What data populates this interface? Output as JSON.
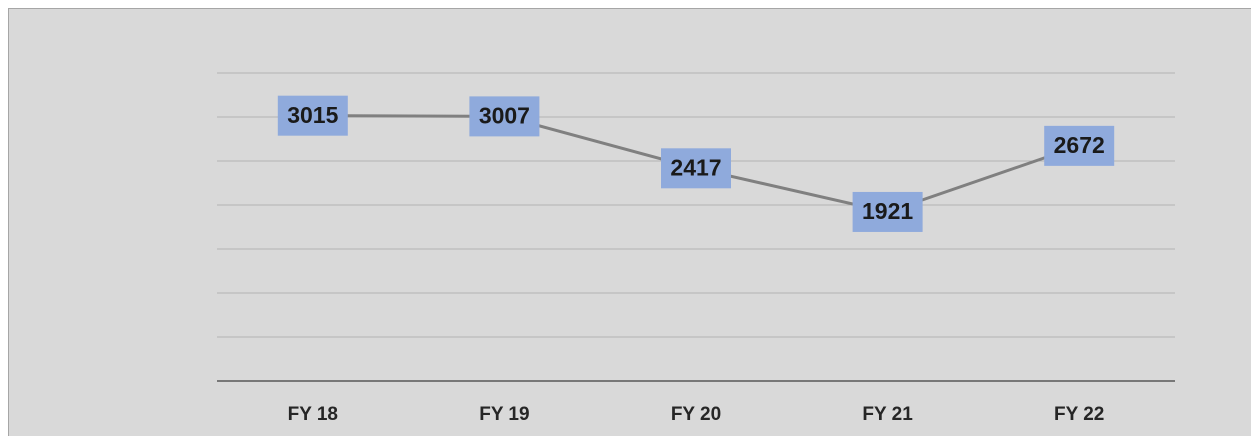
{
  "chart_data": {
    "type": "line",
    "categories": [
      "FY 18",
      "FY 19",
      "FY 20",
      "FY 21",
      "FY 22"
    ],
    "series": [
      {
        "values": [
          3015,
          3007,
          2417,
          1921,
          2672
        ],
        "color": "#808080"
      }
    ],
    "label_color": "#8faadc",
    "ylim": [
      0,
      3500
    ],
    "yticks": [
      0,
      500,
      1000,
      1500,
      2000,
      2500,
      3000,
      3500
    ],
    "grid": true
  }
}
